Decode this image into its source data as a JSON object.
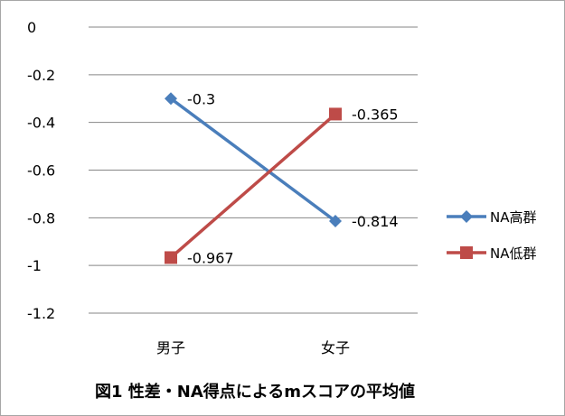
{
  "chart_data": {
    "type": "line",
    "categories": [
      "男子",
      "女子"
    ],
    "series": [
      {
        "name": "NA高群",
        "values": [
          -0.3,
          -0.814
        ],
        "color": "#4a7ebb",
        "marker": "diamond"
      },
      {
        "name": "NA低群",
        "values": [
          -0.967,
          -0.365
        ],
        "color": "#be4b48",
        "marker": "square"
      }
    ],
    "data_labels": [
      [
        "-0.3",
        "-0.814"
      ],
      [
        "-0.967",
        "-0.365"
      ]
    ],
    "yticks": [
      0,
      -0.2,
      -0.4,
      -0.6,
      -0.8,
      -1,
      -1.2
    ],
    "ytick_labels": [
      "0",
      "-0.2",
      "-0.4",
      "-0.6",
      "-0.8",
      "-1",
      "-1.2"
    ],
    "ylim": [
      -1.2,
      0
    ],
    "grid": true,
    "legend_position": "right",
    "caption": "図1  性差・NA得点によるmスコアの平均値"
  }
}
